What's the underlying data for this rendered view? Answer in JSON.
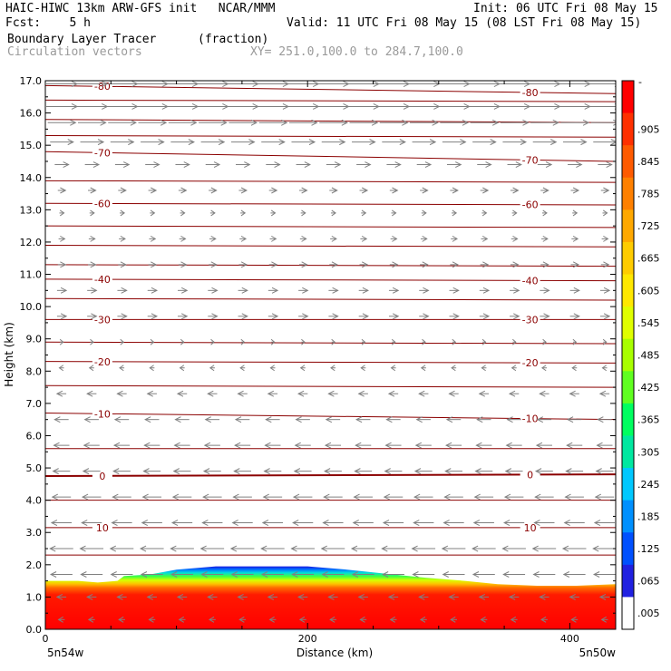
{
  "header": {
    "title_left": "HAIC-HIWC 13km ARW-GFS init   NCAR/MMM",
    "init": "Init: 06 UTC Fri 08 May 15",
    "fcst": "Fcst:    5 h",
    "valid": "Valid: 11 UTC Fri 08 May 15 (08 LST Fri 08 May 15)",
    "field": "Boundary Layer Tracer",
    "field_units": "(fraction)",
    "overlay": "Circulation vectors",
    "xy": "XY= 251.0,100.0 to 284.7,100.0"
  },
  "chart_data": {
    "type": "heatmap",
    "xlabel": "Distance (km)",
    "ylabel": "Height (km)",
    "xlim": [
      0,
      435
    ],
    "ylim": [
      0,
      17
    ],
    "x_ticks": [
      0,
      200,
      400
    ],
    "y_ticks": [
      "0.0",
      "1.0",
      "2.0",
      "3.0",
      "4.0",
      "5.0",
      "6.0",
      "7.0",
      "8.0",
      "9.0",
      "10.0",
      "11.0",
      "12.0",
      "13.0",
      "14.0",
      "15.0",
      "16.0",
      "17.0"
    ],
    "endpoints": {
      "left": "5n54w",
      "right": "5n50w"
    },
    "colorbar": {
      "labels": [
        ".905",
        ".845",
        ".785",
        ".725",
        ".665",
        ".605",
        ".545",
        ".485",
        ".425",
        ".365",
        ".305",
        ".245",
        ".185",
        ".125",
        ".065",
        ".005"
      ],
      "top_label": "-",
      "colors": [
        "#ff0000",
        "#ff3000",
        "#ff5a00",
        "#ff8000",
        "#ffa800",
        "#ffcc00",
        "#ffe800",
        "#e0ff00",
        "#a8ff00",
        "#60ff20",
        "#00ff60",
        "#00e8a0",
        "#00c8ff",
        "#0090ff",
        "#0050ff",
        "#2020e0",
        "#ffffff"
      ]
    },
    "tracer_top_km": [
      [
        0,
        1.5
      ],
      [
        25,
        1.5
      ],
      [
        40,
        1.45
      ],
      [
        55,
        1.5
      ],
      [
        60,
        1.65
      ],
      [
        80,
        1.7
      ],
      [
        100,
        1.85
      ],
      [
        130,
        1.95
      ],
      [
        170,
        1.95
      ],
      [
        200,
        1.95
      ],
      [
        230,
        1.85
      ],
      [
        265,
        1.7
      ],
      [
        290,
        1.6
      ],
      [
        320,
        1.5
      ],
      [
        345,
        1.4
      ],
      [
        375,
        1.35
      ],
      [
        405,
        1.35
      ],
      [
        435,
        1.4
      ]
    ],
    "contours": [
      {
        "label": "-80",
        "z0": 16.85,
        "z1": 16.6
      },
      {
        "label": "",
        "z0": 16.4,
        "z1": 16.35
      },
      {
        "label": "",
        "z0": 15.8,
        "z1": 15.7
      },
      {
        "label": "",
        "z0": 15.3,
        "z1": 15.25
      },
      {
        "label": "-70",
        "z0": 14.8,
        "z1": 14.5
      },
      {
        "label": "",
        "z0": 13.9,
        "z1": 13.85
      },
      {
        "label": "-60",
        "z0": 13.2,
        "z1": 13.15
      },
      {
        "label": "",
        "z0": 12.5,
        "z1": 12.45
      },
      {
        "label": "",
        "z0": 11.9,
        "z1": 11.85
      },
      {
        "label": "",
        "z0": 11.3,
        "z1": 11.25
      },
      {
        "label": "-40",
        "z0": 10.85,
        "z1": 10.8
      },
      {
        "label": "",
        "z0": 10.25,
        "z1": 10.2
      },
      {
        "label": "-30",
        "z0": 9.6,
        "z1": 9.6
      },
      {
        "label": "",
        "z0": 8.9,
        "z1": 8.85
      },
      {
        "label": "-20",
        "z0": 8.3,
        "z1": 8.25
      },
      {
        "label": "",
        "z0": 7.55,
        "z1": 7.5
      },
      {
        "label": "-10",
        "z0": 6.7,
        "z1": 6.5
      },
      {
        "label": "",
        "z0": 5.6,
        "z1": 5.6
      },
      {
        "label": "0",
        "z0": 4.75,
        "z1": 4.8
      },
      {
        "label": "",
        "z0": 4.0,
        "z1": 4.0
      },
      {
        "label": "10",
        "z0": 3.15,
        "z1": 3.15
      },
      {
        "label": "",
        "z0": 2.3,
        "z1": 2.3
      }
    ],
    "wind_rows": [
      {
        "z": 16.9,
        "u": 1.0
      },
      {
        "z": 16.2,
        "u": 1.0
      },
      {
        "z": 15.7,
        "u": 0.9
      },
      {
        "z": 15.1,
        "u": 0.75
      },
      {
        "z": 14.4,
        "u": 0.45
      },
      {
        "z": 13.6,
        "u": 0.25
      },
      {
        "z": 12.9,
        "u": 0.15
      },
      {
        "z": 12.1,
        "u": 0.2
      },
      {
        "z": 11.3,
        "u": 0.25
      },
      {
        "z": 10.5,
        "u": 0.3
      },
      {
        "z": 9.7,
        "u": 0.3
      },
      {
        "z": 8.9,
        "u": 0.1
      },
      {
        "z": 8.1,
        "u": -0.15
      },
      {
        "z": 7.3,
        "u": -0.3
      },
      {
        "z": 6.5,
        "u": -0.45
      },
      {
        "z": 5.7,
        "u": -0.5
      },
      {
        "z": 4.9,
        "u": -0.55
      },
      {
        "z": 4.1,
        "u": -0.6
      },
      {
        "z": 3.3,
        "u": -0.65
      },
      {
        "z": 2.5,
        "u": -0.75
      },
      {
        "z": 1.7,
        "u": -0.7
      },
      {
        "z": 1.0,
        "u": -0.3
      },
      {
        "z": 0.3,
        "u": -0.2
      }
    ]
  }
}
